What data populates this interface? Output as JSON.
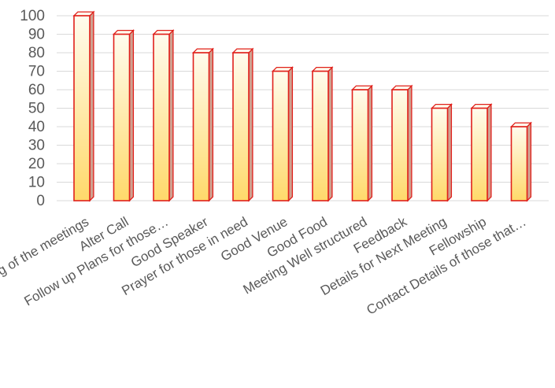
{
  "chart_data": {
    "type": "bar",
    "style": "3d-column",
    "categories": [
      "Timing of the meetings",
      "Alter Call",
      "Follow up Plans for those…",
      "Good Speaker",
      "Prayer for those in need",
      "Good Venue",
      "Good Food",
      "Meeting Well structured",
      "Feedback",
      "Details for Next Meeting",
      "Fellowship",
      "Contact Details of those that…"
    ],
    "values": [
      100,
      90,
      90,
      80,
      80,
      70,
      70,
      60,
      60,
      50,
      50,
      40
    ],
    "ylim": [
      0,
      100
    ],
    "yticks": [
      0,
      10,
      20,
      30,
      40,
      50,
      60,
      70,
      80,
      90,
      100
    ],
    "grid": true,
    "legend": "none",
    "colors": {
      "bar_top": "#fffcee",
      "bar_bottom": "#ffd96a",
      "bar_outline": "#e0201b",
      "bar_side": "#d0a090",
      "grid": "#d9d9d9",
      "text": "#595959"
    }
  }
}
